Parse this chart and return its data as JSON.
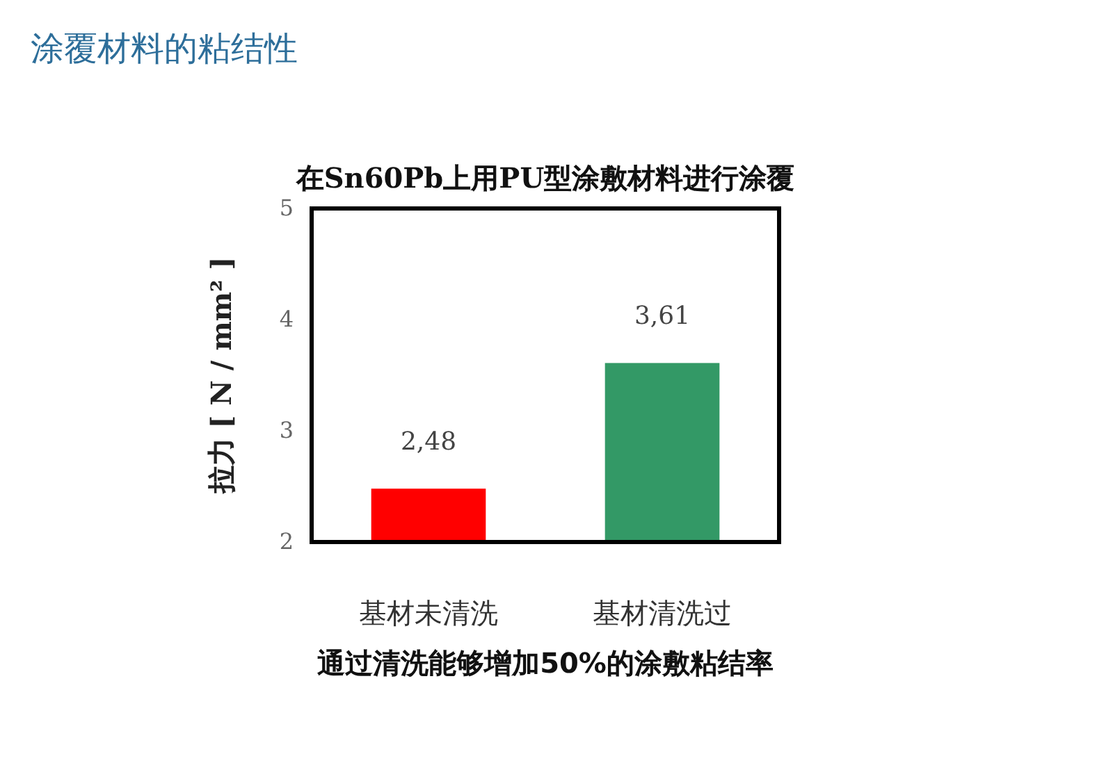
{
  "chart_data": {
    "type": "bar",
    "title": "涂覆材料的粘结性",
    "subtitle": "在Sn60Pb上用PU型涂敷材料进行涂覆",
    "ylabel": "拉力 [ N / mm² ]",
    "categories": [
      "基材未清洗",
      "基材清洗过"
    ],
    "values": [
      2.48,
      3.61
    ],
    "colors": [
      "#ff0000",
      "#339966"
    ],
    "value_labels": [
      "2,48",
      "3,61"
    ],
    "ylim": [
      2,
      5
    ],
    "yticks": [
      2,
      3,
      4,
      5
    ],
    "annotations": [
      "通过清洗能够增加50%的涂敷粘结率"
    ]
  }
}
